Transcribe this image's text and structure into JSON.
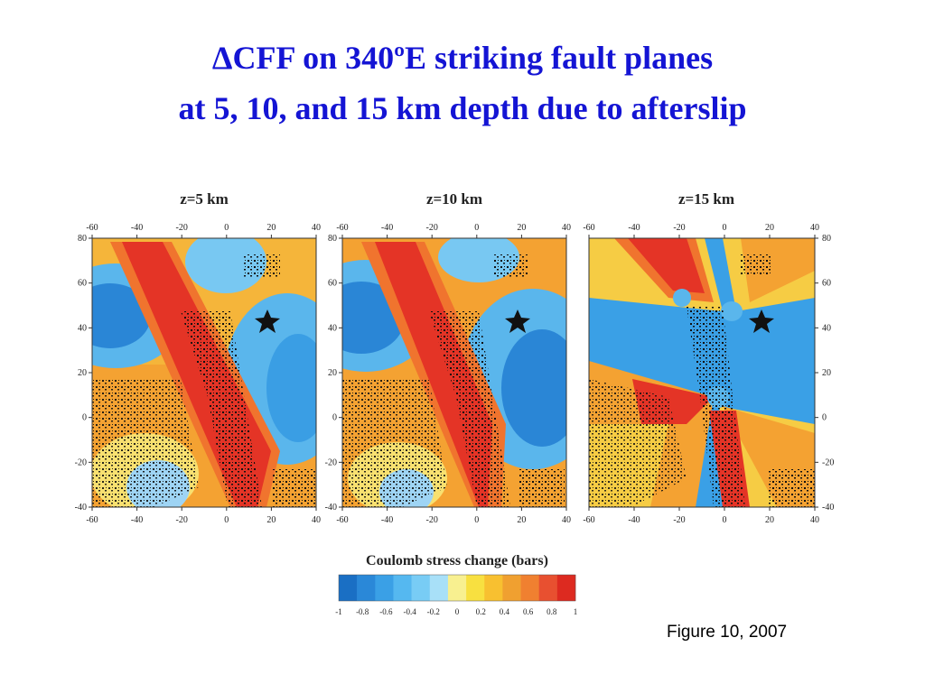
{
  "slide": {
    "title_line1": "ΔCFF on 340ºE striking fault planes",
    "title_line2": "at 5, 10, and 15 km depth due to afterslip",
    "caption": "Figure 10, 2007"
  },
  "chart_data": {
    "type": "heatmap",
    "panels": [
      {
        "title": "z=5 km",
        "depth_km": 5
      },
      {
        "title": "z=10 km",
        "depth_km": 10
      },
      {
        "title": "z=15 km",
        "depth_km": 15
      }
    ],
    "x_ticks": [
      "-60",
      "-40",
      "-20",
      "0",
      "20",
      "40"
    ],
    "y_ticks": [
      "80",
      "60",
      "40",
      "20",
      "0",
      "-20",
      "-40"
    ],
    "xlim": [
      -60,
      40
    ],
    "ylim": [
      -40,
      80
    ],
    "colorbar": {
      "label": "Coulomb stress change (bars)",
      "range": [
        -1,
        1
      ],
      "tick_labels": [
        "-1",
        "-0.8",
        "-0.6",
        "-0.4",
        "-0.2",
        "0",
        "0.2",
        "0.4",
        "0.6",
        "0.8",
        "1"
      ],
      "colors": [
        "#1a6fc4",
        "#2a88d8",
        "#3aa0e6",
        "#55b8f0",
        "#78ccf5",
        "#a8e0f8",
        "#f8f090",
        "#f8e040",
        "#f8c030",
        "#f0a030",
        "#f08030",
        "#e85030",
        "#dd2a20"
      ]
    },
    "epicenter_star": {
      "x": 17,
      "y": 44
    }
  }
}
